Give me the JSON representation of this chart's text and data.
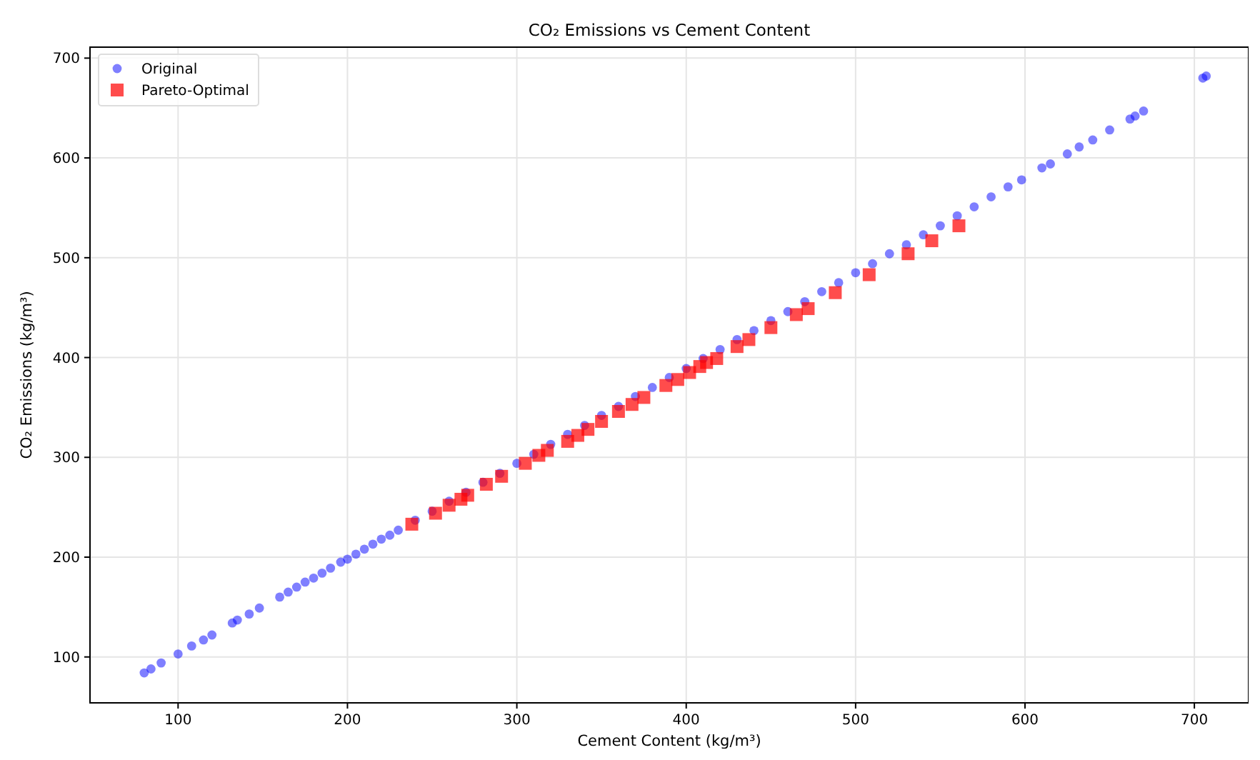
{
  "chart_data": {
    "type": "scatter",
    "title": "CO₂ Emissions vs Cement Content",
    "xlabel": "Cement Content (kg/m³)",
    "ylabel": "CO₂ Emissions (kg/m³)",
    "xlim": [
      48,
      732
    ],
    "ylim": [
      54,
      711
    ],
    "xticks": [
      100,
      200,
      300,
      400,
      500,
      600,
      700
    ],
    "yticks": [
      100,
      200,
      300,
      400,
      500,
      600,
      700
    ],
    "grid": true,
    "legend": "top left",
    "series": [
      {
        "name": "Original",
        "color": "#0000ff",
        "marker": "circle",
        "x": [
          80,
          84,
          90,
          100,
          108,
          115,
          120,
          132,
          135,
          142,
          148,
          160,
          165,
          170,
          175,
          180,
          185,
          190,
          196,
          200,
          205,
          210,
          215,
          220,
          225,
          230,
          240,
          250,
          260,
          270,
          280,
          290,
          300,
          310,
          320,
          330,
          340,
          350,
          360,
          370,
          380,
          390,
          400,
          410,
          420,
          430,
          440,
          450,
          460,
          470,
          480,
          490,
          500,
          510,
          520,
          530,
          540,
          550,
          560,
          570,
          580,
          590,
          598,
          610,
          615,
          625,
          632,
          640,
          650,
          662,
          665,
          670,
          705,
          707
        ],
        "values": [
          84,
          88,
          94,
          103,
          111,
          117,
          122,
          134,
          137,
          143,
          149,
          160,
          165,
          170,
          175,
          179,
          184,
          189,
          195,
          198,
          203,
          208,
          213,
          218,
          222,
          227,
          237,
          246,
          256,
          265,
          275,
          284,
          294,
          303,
          313,
          323,
          332,
          342,
          351,
          361,
          370,
          380,
          389,
          399,
          408,
          418,
          427,
          437,
          446,
          456,
          466,
          475,
          485,
          494,
          504,
          513,
          523,
          532,
          542,
          551,
          561,
          571,
          578,
          590,
          594,
          604,
          611,
          618,
          628,
          639,
          642,
          647,
          680,
          682
        ]
      },
      {
        "name": "Pareto-Optimal",
        "color": "#ff0000",
        "marker": "square",
        "x": [
          238,
          252,
          260,
          267,
          271,
          282,
          291,
          305,
          313,
          318,
          330,
          336,
          342,
          350,
          360,
          368,
          375,
          388,
          395,
          402,
          408,
          412,
          418,
          430,
          437,
          450,
          465,
          472,
          488,
          508,
          531,
          545,
          561
        ],
        "values": [
          233,
          244,
          252,
          258,
          262,
          273,
          281,
          294,
          302,
          307,
          316,
          322,
          328,
          336,
          346,
          353,
          360,
          372,
          378,
          385,
          391,
          395,
          399,
          411,
          418,
          430,
          443,
          449,
          465,
          483,
          504,
          517,
          532
        ]
      }
    ]
  }
}
